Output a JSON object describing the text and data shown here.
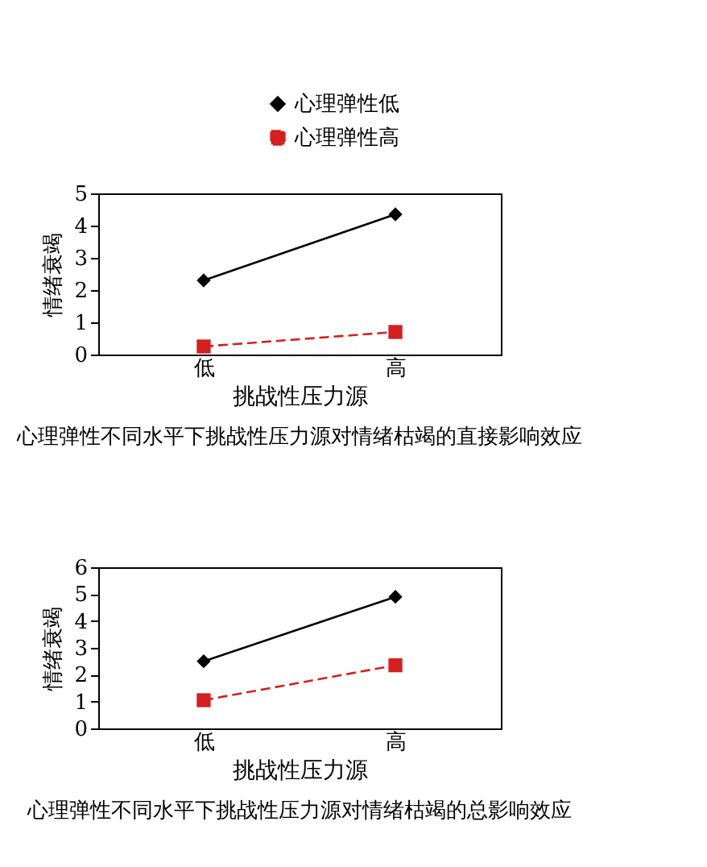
{
  "chart_data": [
    {
      "type": "line",
      "categories": [
        "低",
        "高"
      ],
      "xlabel": "挑战性压力源",
      "ylabel": "情绪衰竭",
      "ylim": [
        0,
        5
      ],
      "yticks": [
        0,
        1,
        2,
        3,
        4,
        5
      ],
      "grid": false,
      "legend": "top right",
      "annotations": [
        "心理弹性不同水平下挑战性压力源对情绪枯竭的直接影响效应"
      ],
      "series": [
        {
          "name": "心理弹性低",
          "color": "#000000",
          "marker": "diamond",
          "line_style": "solid",
          "values": [
            2.3,
            4.35
          ]
        },
        {
          "name": "心理弹性高",
          "color": "#d42020",
          "marker": "square",
          "line_style": "dashed",
          "values": [
            0.25,
            0.7
          ]
        }
      ]
    },
    {
      "type": "line",
      "categories": [
        "低",
        "高"
      ],
      "xlabel": "挑战性压力源",
      "ylabel": "情绪衰竭",
      "ylim": [
        0,
        6
      ],
      "yticks": [
        0,
        1,
        2,
        3,
        4,
        5,
        6
      ],
      "grid": false,
      "legend": "top right",
      "annotations": [
        "心理弹性不同水平下挑战性压力源对情绪枯竭的总影响效应"
      ],
      "series": [
        {
          "name": "心理弹性低",
          "color": "#000000",
          "marker": "diamond",
          "line_style": "solid",
          "values": [
            2.5,
            4.9
          ]
        },
        {
          "name": "心理弹性高",
          "color": "#d42020",
          "marker": "square",
          "line_style": "dashed",
          "values": [
            1.05,
            2.35
          ]
        }
      ]
    }
  ]
}
